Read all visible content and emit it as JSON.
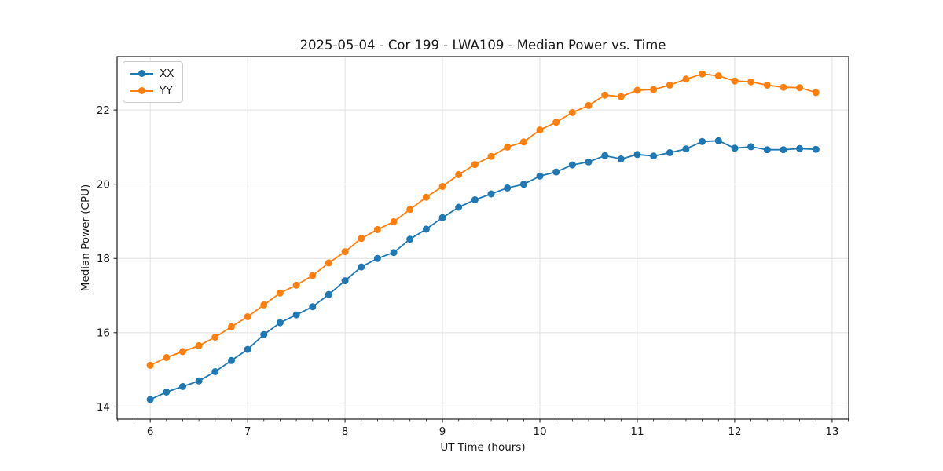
{
  "chart_data": {
    "type": "line",
    "title": "2025-05-04 - Cor 199 - LWA109 - Median Power vs. Time",
    "xlabel": "UT Time (hours)",
    "ylabel": "Median Power (CPU)",
    "xlim": [
      5.66,
      13.17
    ],
    "ylim": [
      13.67,
      23.44
    ],
    "xticks": [
      6,
      7,
      8,
      9,
      10,
      11,
      12,
      13
    ],
    "yticks": [
      14,
      16,
      18,
      20,
      22
    ],
    "x_minor_step_hours": 0.1667,
    "grid": true,
    "legend_position": "upper-left",
    "x": [
      6.0,
      6.1667,
      6.3333,
      6.5,
      6.6667,
      6.8333,
      7.0,
      7.1667,
      7.3333,
      7.5,
      7.6667,
      7.8333,
      8.0,
      8.1667,
      8.3333,
      8.5,
      8.6667,
      8.8333,
      9.0,
      9.1667,
      9.3333,
      9.5,
      9.6667,
      9.8333,
      10.0,
      10.1667,
      10.3333,
      10.5,
      10.6667,
      10.8333,
      11.0,
      11.1667,
      11.3333,
      11.5,
      11.6667,
      11.8333,
      12.0,
      12.1667,
      12.3333,
      12.5,
      12.6667,
      12.8333
    ],
    "series": [
      {
        "name": "XX",
        "color": "#1f77b4",
        "values": [
          14.2,
          14.4,
          14.55,
          14.7,
          14.95,
          15.25,
          15.55,
          15.95,
          16.27,
          16.48,
          16.7,
          17.03,
          17.4,
          17.77,
          18.0,
          18.16,
          18.52,
          18.79,
          19.1,
          19.38,
          19.58,
          19.74,
          19.9,
          20.0,
          20.22,
          20.33,
          20.52,
          20.6,
          20.77,
          20.68,
          20.8,
          20.76,
          20.85,
          20.95,
          21.15,
          21.17,
          20.97,
          21.01,
          20.93,
          20.93,
          20.96,
          20.94
        ]
      },
      {
        "name": "YY",
        "color": "#ff7f0e",
        "values": [
          15.12,
          15.33,
          15.49,
          15.65,
          15.88,
          16.16,
          16.43,
          16.75,
          17.07,
          17.28,
          17.54,
          17.88,
          18.18,
          18.54,
          18.78,
          18.99,
          19.32,
          19.65,
          19.94,
          20.26,
          20.53,
          20.75,
          21.0,
          21.14,
          21.46,
          21.67,
          21.93,
          22.12,
          22.4,
          22.36,
          22.53,
          22.55,
          22.67,
          22.83,
          22.97,
          22.92,
          22.78,
          22.76,
          22.67,
          22.61,
          22.6,
          22.47
        ]
      }
    ]
  },
  "styles": {
    "background": "#ffffff",
    "grid_color": "#e0e0e0",
    "spine_color": "#1a1a1a",
    "text_color": "#1a1a1a",
    "legend_border": "#cccccc"
  }
}
